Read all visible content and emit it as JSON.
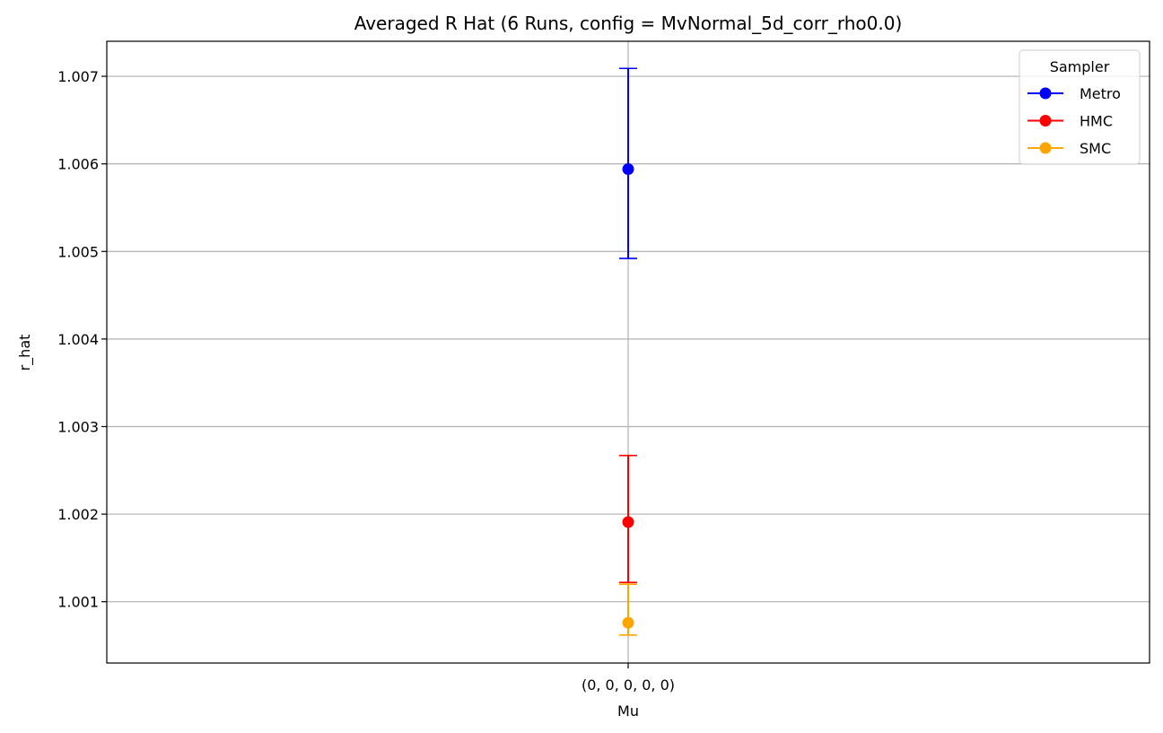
{
  "chart_data": {
    "type": "scatter",
    "title": "Averaged R Hat (6 Runs, config = MvNormal_5d_corr_rho0.0)",
    "xlabel": "Mu",
    "ylabel": "r_hat",
    "categories": [
      "(0, 0, 0, 0, 0)"
    ],
    "ylim": [
      1.0003,
      1.0074
    ],
    "yticks": [
      "1.001",
      "1.002",
      "1.003",
      "1.004",
      "1.005",
      "1.006",
      "1.007"
    ],
    "grid": true,
    "legend": {
      "title": "Sampler",
      "placement": "top-right"
    },
    "series": [
      {
        "name": "Metro",
        "color": "#0000ff",
        "values": [
          1.00594
        ],
        "err_low": [
          1.00492
        ],
        "err_high": [
          1.00709
        ]
      },
      {
        "name": "HMC",
        "color": "#ff0000",
        "values": [
          1.00191
        ],
        "err_low": [
          1.00122
        ],
        "err_high": [
          1.00267
        ]
      },
      {
        "name": "SMC",
        "color": "#ffa500",
        "values": [
          1.00076
        ],
        "err_low": [
          1.00062
        ],
        "err_high": [
          1.0012
        ]
      }
    ]
  }
}
